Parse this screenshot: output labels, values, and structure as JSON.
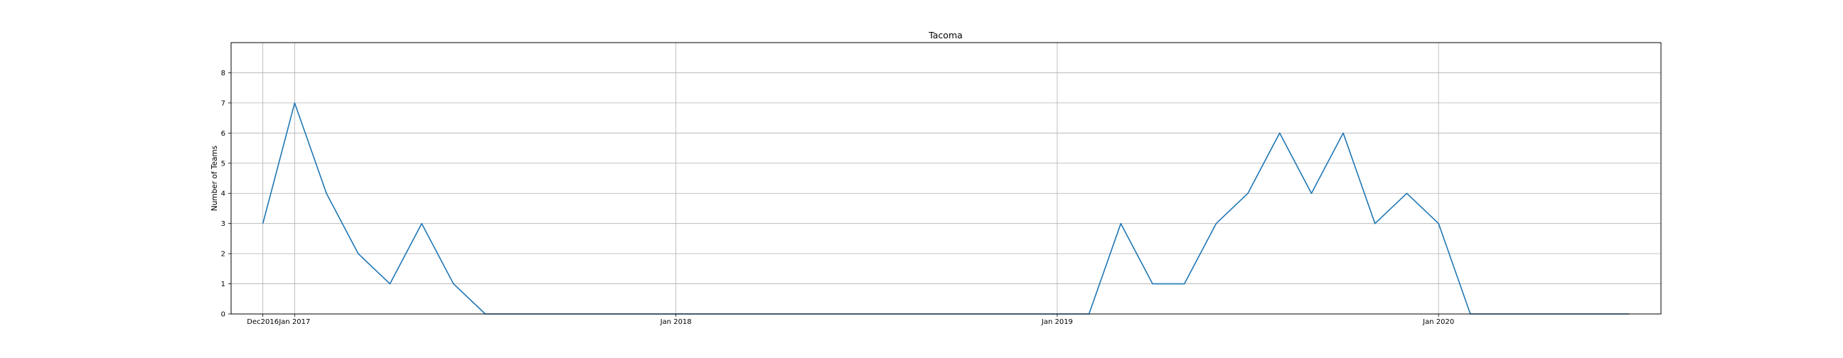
{
  "chart_data": {
    "type": "line",
    "title": "Tacoma",
    "xlabel": "",
    "ylabel": "Number of Teams",
    "grid": true,
    "x_tick_labels": [
      "Dec2016",
      "Jan 2017",
      "Jan 2018",
      "Jan 2019",
      "Jan 2020"
    ],
    "x_tick_dates": [
      "2016-12",
      "2017-01",
      "2018-01",
      "2019-01",
      "2020-01"
    ],
    "xlim": [
      "2016-11",
      "2020-08"
    ],
    "y_ticks": [
      0,
      1,
      2,
      3,
      4,
      5,
      6,
      7,
      8
    ],
    "ylim": [
      0,
      9
    ],
    "line_color": "#1f77b4",
    "series": [
      {
        "x": [
          "2016-12",
          "2017-01",
          "2017-02",
          "2017-03",
          "2017-04",
          "2017-05",
          "2017-06",
          "2017-07",
          "2017-08",
          "2017-09",
          "2017-10",
          "2017-11",
          "2017-12",
          "2018-01",
          "2018-02",
          "2018-03",
          "2018-04",
          "2018-05",
          "2018-06",
          "2018-07",
          "2018-08",
          "2018-09",
          "2018-10",
          "2018-11",
          "2018-12",
          "2019-01",
          "2019-02",
          "2019-03",
          "2019-04",
          "2019-05",
          "2019-06",
          "2019-07",
          "2019-08",
          "2019-09",
          "2019-10",
          "2019-11",
          "2019-12",
          "2020-01",
          "2020-02",
          "2020-03",
          "2020-04",
          "2020-05",
          "2020-06",
          "2020-07"
        ],
        "values": [
          3,
          7,
          4,
          2,
          1,
          3,
          1,
          0,
          0,
          0,
          0,
          0,
          0,
          0,
          0,
          0,
          0,
          0,
          0,
          0,
          0,
          0,
          0,
          0,
          0,
          0,
          0,
          3,
          1,
          1,
          3,
          4,
          6,
          4,
          6,
          3,
          4,
          3,
          0,
          0,
          0,
          0,
          0,
          0
        ]
      }
    ]
  }
}
